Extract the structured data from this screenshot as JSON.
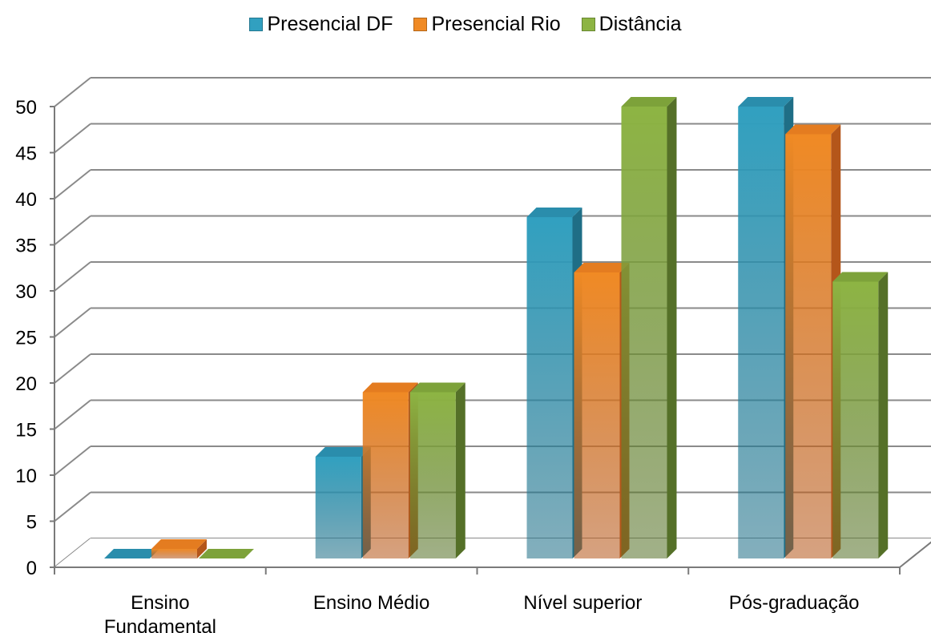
{
  "chart_data": {
    "type": "bar",
    "categories": [
      [
        "Ensino",
        "Fundamental"
      ],
      [
        "Ensino Médio"
      ],
      [
        "Nível superior"
      ],
      [
        "Pós-graduação"
      ]
    ],
    "series": [
      {
        "name": "Presencial DF",
        "values": [
          0,
          12,
          38,
          50
        ],
        "color": "#31A0C0",
        "side_color": "#1F6E86",
        "top_color": "#2A8DAC"
      },
      {
        "name": "Presencial Rio",
        "values": [
          2,
          19,
          32,
          47
        ],
        "color": "#F08A24",
        "side_color": "#B4561A",
        "top_color": "#E47C20"
      },
      {
        "name": "Distância",
        "values": [
          0,
          19,
          50,
          31
        ],
        "color": "#8DB443",
        "side_color": "#557028",
        "top_color": "#7DA23A"
      }
    ],
    "y_ticks": [
      0,
      5,
      10,
      15,
      20,
      25,
      30,
      35,
      40,
      45,
      50
    ],
    "ylim": [
      0,
      50
    ],
    "grid": true,
    "legend_position": "top-center",
    "three_d": true
  }
}
